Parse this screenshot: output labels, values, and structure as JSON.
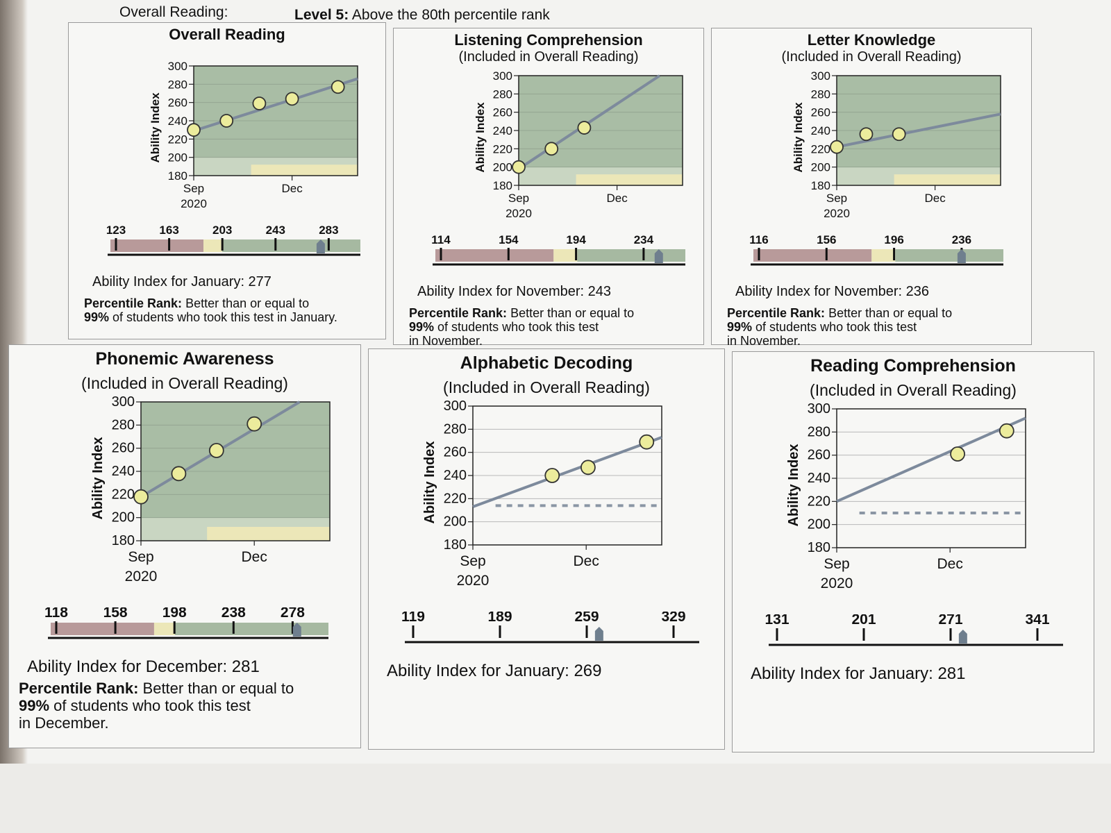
{
  "header": {
    "subject": "Overall Reading:",
    "level_bold": "Level 5:",
    "level_text": "Above the 80th percentile rank"
  },
  "colors": {
    "band_red": "#b89a9a",
    "band_yellow": "#ece7b8",
    "band_green": "#a6b9a1",
    "plot_green": "#a9bda5",
    "line": "#7d8a9c",
    "marker_fill": "#ecec9c",
    "dashed": "#8a96a4",
    "pointer": "#6f7f8e"
  },
  "panels": [
    {
      "id": "overall-reading",
      "title": "Overall Reading",
      "subtitle": "",
      "ability_label": "Ability Index for January: 277",
      "percentile_bold": "Percentile Rank:",
      "percentile_line1": "Better than or equal to",
      "percentile_bold2": "99%",
      "percentile_line2": "of students who took this test in January.",
      "percentile_line3": "",
      "scale": {
        "ticks": [
          "123",
          "163",
          "203",
          "243",
          "283"
        ],
        "pointer_value": 277,
        "colored": true
      }
    },
    {
      "id": "listening-comprehension",
      "title": "Listening Comprehension",
      "subtitle": "(Included in Overall Reading)",
      "ability_label": "Ability Index for November: 243",
      "percentile_bold": "Percentile Rank:",
      "percentile_line1": "Better than or equal to",
      "percentile_bold2": "99%",
      "percentile_line2": "of students who took this test",
      "percentile_line3": "in November.",
      "scale": {
        "ticks": [
          "114",
          "154",
          "194",
          "234"
        ],
        "pointer_value": 243,
        "colored": true
      }
    },
    {
      "id": "letter-knowledge",
      "title": "Letter Knowledge",
      "subtitle": "(Included in Overall Reading)",
      "ability_label": "Ability Index for November: 236",
      "percentile_bold": "Percentile Rank:",
      "percentile_line1": "Better than or equal to",
      "percentile_bold2": "99%",
      "percentile_line2": "of students who took this test",
      "percentile_line3": "in November.",
      "scale": {
        "ticks": [
          "116",
          "156",
          "196",
          "236"
        ],
        "pointer_value": 236,
        "colored": true
      }
    },
    {
      "id": "phonemic-awareness",
      "title": "Phonemic Awareness",
      "subtitle": "(Included in Overall Reading)",
      "ability_label": "Ability Index for December: 281",
      "percentile_bold": "Percentile Rank:",
      "percentile_line1": "Better than or equal to",
      "percentile_bold2": "99%",
      "percentile_line2": "of students who took this test",
      "percentile_line3": "in December.",
      "scale": {
        "ticks": [
          "118",
          "158",
          "198",
          "238",
          "278"
        ],
        "pointer_value": 281,
        "colored": true
      }
    },
    {
      "id": "alphabetic-decoding",
      "title": "Alphabetic Decoding",
      "subtitle": "(Included in Overall Reading)",
      "ability_label": "Ability Index for January: 269",
      "percentile_bold": "",
      "percentile_line1": "",
      "percentile_bold2": "",
      "percentile_line2": "",
      "percentile_line3": "",
      "scale": {
        "ticks": [
          "119",
          "189",
          "259",
          "329"
        ],
        "pointer_value": 269,
        "colored": false
      }
    },
    {
      "id": "reading-comprehension",
      "title": "Reading Comprehension",
      "subtitle": "(Included in Overall Reading)",
      "ability_label": "Ability Index for January: 281",
      "percentile_bold": "",
      "percentile_line1": "",
      "percentile_bold2": "",
      "percentile_line2": "",
      "percentile_line3": "",
      "scale": {
        "ticks": [
          "131",
          "201",
          "271",
          "341"
        ],
        "pointer_value": 281,
        "colored": false
      }
    }
  ],
  "chart_data": [
    {
      "type": "line",
      "title": "Overall Reading",
      "ylabel": "Ability Index",
      "ylim": [
        180,
        300
      ],
      "yticks": [
        180,
        200,
        220,
        240,
        260,
        280,
        300
      ],
      "xticks": [
        {
          "label": "Sep",
          "sub": "2020",
          "x": 0
        },
        {
          "label": "Dec",
          "sub": "",
          "x": 3
        }
      ],
      "xlim": [
        0,
        5
      ],
      "shaded_bands": true,
      "trend": [
        {
          "x": 0,
          "y": 229
        },
        {
          "x": 5,
          "y": 286
        }
      ],
      "points": [
        {
          "x": 0,
          "y": 230
        },
        {
          "x": 1,
          "y": 240
        },
        {
          "x": 2,
          "y": 259
        },
        {
          "x": 3,
          "y": 264
        },
        {
          "x": 4.4,
          "y": 277
        }
      ],
      "dashed_y": null
    },
    {
      "type": "line",
      "title": "Listening Comprehension",
      "ylabel": "Ability Index",
      "ylim": [
        180,
        300
      ],
      "yticks": [
        180,
        200,
        220,
        240,
        260,
        280,
        300
      ],
      "xticks": [
        {
          "label": "Sep",
          "sub": "2020",
          "x": 0
        },
        {
          "label": "Dec",
          "sub": "",
          "x": 3
        }
      ],
      "xlim": [
        0,
        5
      ],
      "shaded_bands": true,
      "trend": [
        {
          "x": 0,
          "y": 198
        },
        {
          "x": 4.3,
          "y": 300
        }
      ],
      "points": [
        {
          "x": 0,
          "y": 200
        },
        {
          "x": 1,
          "y": 220
        },
        {
          "x": 2,
          "y": 243
        }
      ],
      "dashed_y": null
    },
    {
      "type": "line",
      "title": "Letter Knowledge",
      "ylabel": "Ability Index",
      "ylim": [
        180,
        300
      ],
      "yticks": [
        180,
        200,
        220,
        240,
        260,
        280,
        300
      ],
      "xticks": [
        {
          "label": "Sep",
          "sub": "2020",
          "x": 0
        },
        {
          "label": "Dec",
          "sub": "",
          "x": 3
        }
      ],
      "xlim": [
        0,
        5
      ],
      "shaded_bands": true,
      "trend": [
        {
          "x": 0,
          "y": 222
        },
        {
          "x": 5,
          "y": 258
        }
      ],
      "points": [
        {
          "x": 0,
          "y": 222
        },
        {
          "x": 0.9,
          "y": 236
        },
        {
          "x": 1.9,
          "y": 236
        }
      ],
      "dashed_y": null
    },
    {
      "type": "line",
      "title": "Phonemic Awareness",
      "ylabel": "Ability Index",
      "ylim": [
        180,
        300
      ],
      "yticks": [
        180,
        200,
        220,
        240,
        260,
        280,
        300
      ],
      "xticks": [
        {
          "label": "Sep",
          "sub": "2020",
          "x": 0
        },
        {
          "label": "Dec",
          "sub": "",
          "x": 3
        }
      ],
      "xlim": [
        0,
        5
      ],
      "shaded_bands": true,
      "trend": [
        {
          "x": 0,
          "y": 218
        },
        {
          "x": 4.2,
          "y": 300
        }
      ],
      "points": [
        {
          "x": 0,
          "y": 218
        },
        {
          "x": 1,
          "y": 238
        },
        {
          "x": 2,
          "y": 258
        },
        {
          "x": 3,
          "y": 281
        }
      ],
      "dashed_y": null
    },
    {
      "type": "line",
      "title": "Alphabetic Decoding",
      "ylabel": "Ability Index",
      "ylim": [
        180,
        300
      ],
      "yticks": [
        180,
        200,
        220,
        240,
        260,
        280,
        300
      ],
      "xticks": [
        {
          "label": "Sep",
          "sub": "2020",
          "x": 0
        },
        {
          "label": "Dec",
          "sub": "",
          "x": 3
        }
      ],
      "xlim": [
        0,
        5
      ],
      "shaded_bands": false,
      "trend": [
        {
          "x": 0,
          "y": 213
        },
        {
          "x": 5,
          "y": 273
        }
      ],
      "points": [
        {
          "x": 2.1,
          "y": 240
        },
        {
          "x": 3.05,
          "y": 247
        },
        {
          "x": 4.6,
          "y": 269
        }
      ],
      "dashed_y": 214
    },
    {
      "type": "line",
      "title": "Reading Comprehension",
      "ylabel": "Ability Index",
      "ylim": [
        180,
        300
      ],
      "yticks": [
        180,
        200,
        220,
        240,
        260,
        280,
        300
      ],
      "xticks": [
        {
          "label": "Sep",
          "sub": "2020",
          "x": 0
        },
        {
          "label": "Dec",
          "sub": "",
          "x": 3
        }
      ],
      "xlim": [
        0,
        5
      ],
      "shaded_bands": false,
      "trend": [
        {
          "x": 0,
          "y": 220
        },
        {
          "x": 5,
          "y": 292
        }
      ],
      "points": [
        {
          "x": 3.2,
          "y": 261
        },
        {
          "x": 4.5,
          "y": 281
        }
      ],
      "dashed_y": 210
    }
  ]
}
